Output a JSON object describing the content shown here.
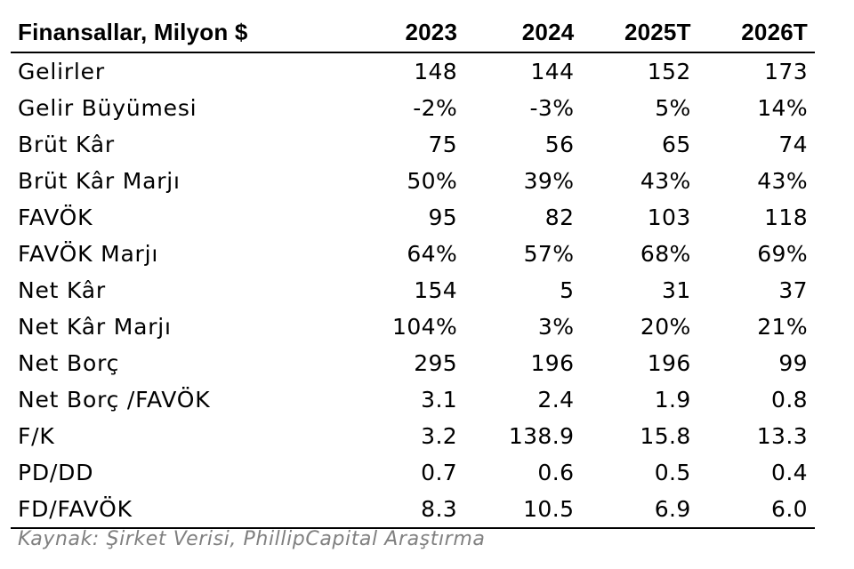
{
  "table": {
    "header": {
      "label": "Finansallar, Milyon $",
      "years": [
        "2023",
        "2024",
        "2025T",
        "2026T"
      ]
    },
    "rows": [
      {
        "label": "Gelirler",
        "values": [
          "148",
          "144",
          "152",
          "173"
        ]
      },
      {
        "label": "Gelir Büyümesi",
        "values": [
          "-2%",
          "-3%",
          "5%",
          "14%"
        ]
      },
      {
        "label": "Brüt Kâr",
        "values": [
          "75",
          "56",
          "65",
          "74"
        ]
      },
      {
        "label": "Brüt Kâr Marjı",
        "values": [
          "50%",
          "39%",
          "43%",
          "43%"
        ]
      },
      {
        "label": "FAVÖK",
        "values": [
          "95",
          "82",
          "103",
          "118"
        ]
      },
      {
        "label": "FAVÖK Marjı",
        "values": [
          "64%",
          "57%",
          "68%",
          "69%"
        ]
      },
      {
        "label": "Net Kâr",
        "values": [
          "154",
          "5",
          "31",
          "37"
        ]
      },
      {
        "label": "Net Kâr Marjı",
        "values": [
          "104%",
          "3%",
          "20%",
          "21%"
        ]
      },
      {
        "label": "Net Borç",
        "values": [
          "295",
          "196",
          "196",
          "99"
        ]
      },
      {
        "label": "Net Borç /FAVÖK",
        "values": [
          "3.1",
          "2.4",
          "1.9",
          "0.8"
        ]
      },
      {
        "label": "F/K",
        "values": [
          "3.2",
          "138.9",
          "15.8",
          "13.3"
        ]
      },
      {
        "label": "PD/DD",
        "values": [
          "0.7",
          "0.6",
          "0.5",
          "0.4"
        ]
      },
      {
        "label": "FD/FAVÖK",
        "values": [
          "8.3",
          "10.5",
          "6.9",
          "6.0"
        ]
      }
    ]
  },
  "source": "Kaynak: Şirket Verisi, PhillipCapital Araştırma"
}
